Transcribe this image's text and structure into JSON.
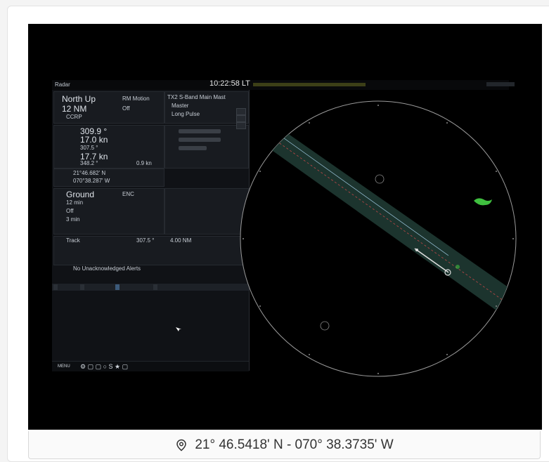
{
  "radar": {
    "title": "Radar",
    "clock": "10:22:58 LT",
    "orientation": "North Up",
    "motion": "RM Motion",
    "range": "12 NM",
    "rings": "Off",
    "mode": "CCRP",
    "heading": "309.9 °",
    "speed": "17.0 kn",
    "cog": "307.5 °",
    "sog": "17.7 kn",
    "set": "348.2 °",
    "drift": "0.9 kn",
    "lat": "21°46.682' N",
    "lon": "070°38.287' W",
    "stab": "Ground",
    "ebl_label": "ENC",
    "vector": "12 min",
    "trails": "Off",
    "trail_time": "3 min",
    "track": "Track",
    "track_brg": "307.5 °",
    "track_rng": "4.00 NM",
    "alerts": "No Unacknowledged Alerts",
    "tx": "TX2 S-Band Main Mast",
    "master": "Master",
    "pulse": "Long Pulse",
    "menu": "MENU"
  },
  "location_caption": "21° 46.5418' N - 070° 38.3735' W",
  "colors": {
    "screen_bg": "#000000",
    "ring": "#9a9a9a",
    "lane": "#1f3a33",
    "target": "#3fbf3f"
  }
}
